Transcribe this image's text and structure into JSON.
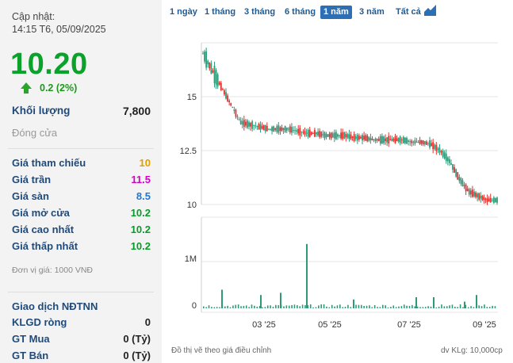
{
  "updated": {
    "label": "Cập nhật:",
    "time": "14:15 T6, 05/09/2025"
  },
  "price": "10.20",
  "change": "0.2 (2%)",
  "volume": {
    "label": "Khối lượng",
    "value": "7,800"
  },
  "status": "Đóng cửa",
  "stats": [
    {
      "label": "Giá tham chiếu",
      "value": "10",
      "color": "#e0a000"
    },
    {
      "label": "Giá trần",
      "value": "11.5",
      "color": "#d400c8"
    },
    {
      "label": "Giá sàn",
      "value": "8.5",
      "color": "#1f7ad0"
    },
    {
      "label": "Giá mở cửa",
      "value": "10.2",
      "color": "#0a9a2a"
    },
    {
      "label": "Giá cao nhất",
      "value": "10.2",
      "color": "#0a9a2a"
    },
    {
      "label": "Giá thấp nhất",
      "value": "10.2",
      "color": "#0a9a2a"
    }
  ],
  "unit_note": "Đơn vị giá: 1000 VNĐ",
  "foreign": {
    "title": "Giao dịch NĐTNN",
    "rows": [
      {
        "label": "KLGD ròng",
        "value": "0"
      },
      {
        "label": "GT Mua",
        "value": "0 (Tỷ)"
      },
      {
        "label": "GT Bán",
        "value": "0 (Tỷ)"
      }
    ]
  },
  "tabs": [
    "1 ngày",
    "1 tháng",
    "3 tháng",
    "6 tháng",
    "1 năm",
    "3 năm",
    "Tất cả"
  ],
  "active_tab": "1 năm",
  "footer": {
    "left": "Đồ thị vẽ theo giá điều chỉnh",
    "right": "dv KLg: 10,000cp"
  },
  "chart_data": {
    "type": "candlestick",
    "price_y_ticks": [
      "15",
      "12.5",
      "10"
    ],
    "volume_y_ticks": [
      "1M",
      "0"
    ],
    "x_ticks": [
      "03 '25",
      "05 '25",
      "07 '25",
      "09 '25"
    ],
    "up_color": "#2e9a7a",
    "down_color": "#e0312f",
    "price_points": [
      17.0,
      16.2,
      15.4,
      14.6,
      13.8,
      13.7,
      13.6,
      13.5,
      13.5,
      13.5,
      13.4,
      13.3,
      13.3,
      13.2,
      13.2,
      13.2,
      13.1,
      13.1,
      13.0,
      13.0,
      13.0,
      13.0,
      12.9,
      12.9,
      12.8,
      12.5,
      12.0,
      11.2,
      10.6,
      10.4,
      10.2,
      10.2
    ],
    "volume_spikes": [
      1.45,
      0.42,
      0.3,
      0.35,
      0.25,
      0.2,
      0.25,
      0.15,
      0.3
    ]
  }
}
